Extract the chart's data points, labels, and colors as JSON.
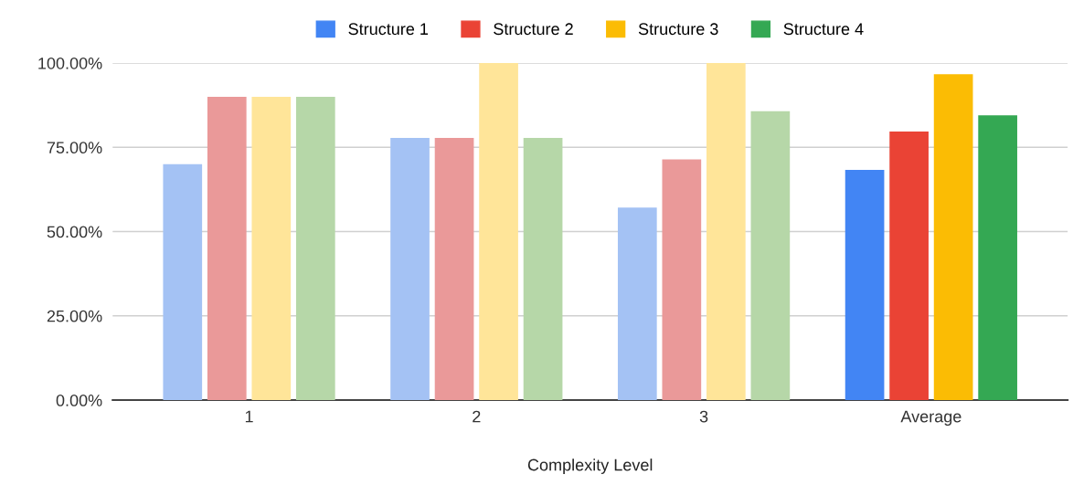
{
  "chart_data": {
    "type": "bar",
    "xlabel": "Complexity Level",
    "categories": [
      "1",
      "2",
      "3",
      "Average"
    ],
    "series": [
      {
        "name": "Structure 1",
        "color": "#4285f4",
        "colors": [
          "#a4c2f4",
          "#a4c2f4",
          "#a4c2f4",
          "#4285f4"
        ],
        "values": [
          70,
          77.8,
          57.1,
          68.3
        ]
      },
      {
        "name": "Structure 2",
        "color": "#ea4335",
        "colors": [
          "#ea9999",
          "#ea9999",
          "#ea9999",
          "#ea4335"
        ],
        "values": [
          90,
          77.8,
          71.4,
          79.7
        ]
      },
      {
        "name": "Structure 3",
        "color": "#fbbc04",
        "colors": [
          "#ffe599",
          "#ffe599",
          "#ffe599",
          "#fbbc04"
        ],
        "values": [
          90,
          100,
          100,
          96.7
        ]
      },
      {
        "name": "Structure 4",
        "color": "#34a853",
        "colors": [
          "#b6d7a8",
          "#b6d7a8",
          "#b6d7a8",
          "#34a853"
        ],
        "values": [
          90,
          77.8,
          85.7,
          84.5
        ]
      }
    ],
    "ylim": [
      0,
      100
    ],
    "yticks": [
      {
        "value": 0,
        "label": "0.00%"
      },
      {
        "value": 25,
        "label": "25.00%"
      },
      {
        "value": 50,
        "label": "50.00%"
      },
      {
        "value": 75,
        "label": "75.00%"
      },
      {
        "value": 100,
        "label": "100.00%"
      }
    ],
    "grid": "y",
    "legend": "top"
  }
}
